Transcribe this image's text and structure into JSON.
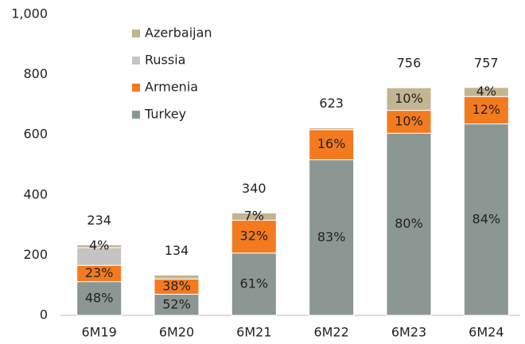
{
  "chart_data": {
    "type": "stacked_bar",
    "categories": [
      "6M19",
      "6M20",
      "6M21",
      "6M22",
      "6M23",
      "6M24"
    ],
    "totals": [
      234,
      134,
      340,
      623,
      756,
      757
    ],
    "series": [
      {
        "name": "Turkey",
        "color": "#8c9692",
        "values": [
          112,
          70,
          207,
          517,
          605,
          636
        ],
        "share_labels": [
          "48%",
          "52%",
          "61%",
          "83%",
          "80%",
          "84%"
        ]
      },
      {
        "name": "Armenia",
        "color": "#f47a20",
        "values": [
          54,
          51,
          109,
          100,
          76,
          91
        ],
        "share_labels": [
          "23%",
          "38%",
          "32%",
          "16%",
          "10%",
          "12%"
        ]
      },
      {
        "name": "Russia",
        "color": "#c4c4c4",
        "values": [
          59,
          0,
          0,
          0,
          0,
          0
        ],
        "share_labels": [
          null,
          null,
          null,
          null,
          null,
          null
        ]
      },
      {
        "name": "Azerbaijan",
        "color": "#c2b592",
        "values": [
          9,
          13,
          24,
          6,
          75,
          30
        ],
        "share_labels": [
          "4%",
          null,
          "7%",
          null,
          "10%",
          "4%"
        ]
      }
    ],
    "ylim": [
      0,
      1000
    ],
    "yticks": [
      0,
      200,
      400,
      600,
      800,
      {
        "value": 1000,
        "label": "1,000"
      }
    ],
    "grid": false
  }
}
